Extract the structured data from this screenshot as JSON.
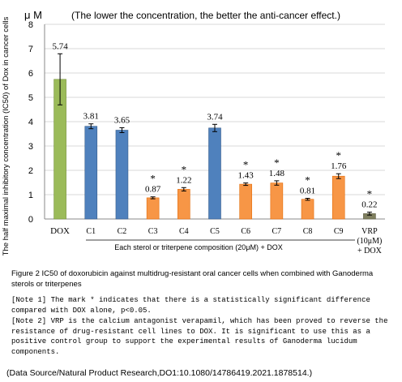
{
  "chart_data": {
    "type": "bar",
    "title": "(The lower the concentration, the better the anti-cancer effect.)",
    "y_unit": "μ M",
    "ylabel": "The half maximal inhibitory concentration (IC50) of Dox in cancer cells",
    "xlabel": "Each sterol or triterpene composition (20μM) + DOX",
    "ylim": [
      0,
      8
    ],
    "yticks": [
      "0",
      "1",
      "2",
      "3",
      "4",
      "5",
      "6",
      "7",
      "8"
    ],
    "grid": true,
    "categories": [
      "DOX",
      "C1",
      "C2",
      "C3",
      "C4",
      "C5",
      "C6",
      "C7",
      "C8",
      "C9",
      "VRP (10μM) + DOX"
    ],
    "category_labels": [
      [
        "DOX"
      ],
      [
        "C1"
      ],
      [
        "C2"
      ],
      [
        "C3"
      ],
      [
        "C4"
      ],
      [
        "C5"
      ],
      [
        "C6"
      ],
      [
        "C7"
      ],
      [
        "C8"
      ],
      [
        "C9"
      ],
      [
        "VRP",
        "(10μM)",
        "+ DOX"
      ]
    ],
    "values": [
      5.74,
      3.81,
      3.65,
      0.87,
      1.22,
      3.74,
      1.43,
      1.48,
      0.81,
      1.76,
      0.22
    ],
    "value_labels": [
      "5.74",
      "3.81",
      "3.65",
      "0.87",
      "1.22",
      "3.74",
      "1.43",
      "1.48",
      "0.81",
      "1.76",
      "0.22"
    ],
    "errors": [
      1.05,
      0.1,
      0.1,
      0.04,
      0.07,
      0.15,
      0.05,
      0.09,
      0.04,
      0.1,
      0.06
    ],
    "significant": [
      false,
      false,
      false,
      true,
      true,
      false,
      true,
      true,
      true,
      true,
      true
    ],
    "significance_mark": "*",
    "bar_colors": [
      "#9bbb59",
      "#4f81bd",
      "#4f81bd",
      "#f79646",
      "#f79646",
      "#4f81bd",
      "#f79646",
      "#f79646",
      "#f79646",
      "#f79646",
      "#7f7f5f"
    ]
  },
  "figure_caption": "Figure 2 IC50 of doxorubicin against multidrug-resistant oral cancer cells when combined with Ganoderma sterols or triterpenes",
  "note1": "[Note 1] The mark * indicates that there is a statistically significant difference compared with DOX alone, p<0.05.",
  "note2": "[Note 2] VRP is the calcium antagonist verapamil, which has been proved to reverse the resistance of drug-resistant cell lines to DOX. It is significant to use this as a positive control group to support the experimental results of Ganoderma lucidum components.",
  "source": "(Data Source/Natural Product Research,DO1:10.1080/14786419.2021.1878514.)"
}
